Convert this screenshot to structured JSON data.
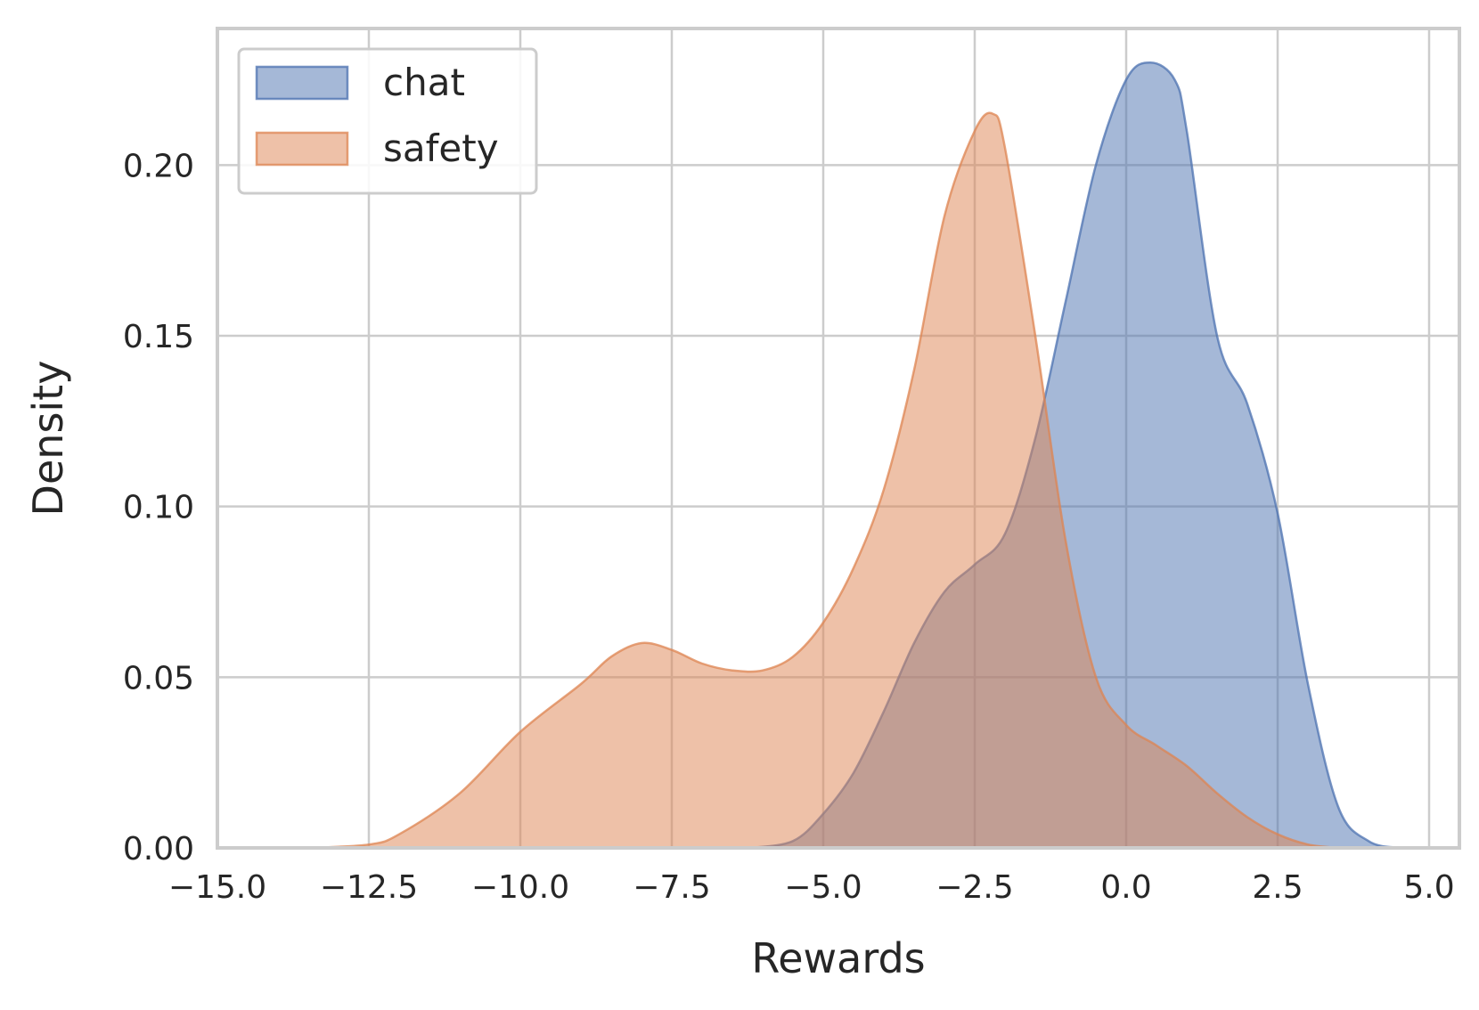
{
  "chart_data": {
    "type": "area",
    "title": "",
    "xlabel": "Rewards",
    "ylabel": "Density",
    "xlim": [
      -15.0,
      5.5
    ],
    "ylim": [
      0.0,
      0.24
    ],
    "x_ticks": [
      -15.0,
      -12.5,
      -10.0,
      -7.5,
      -5.0,
      -2.5,
      0.0,
      2.5,
      5.0
    ],
    "x_tick_labels": [
      "−15.0",
      "−12.5",
      "−10.0",
      "−7.5",
      "−5.0",
      "−2.5",
      "0.0",
      "2.5",
      "5.0"
    ],
    "y_ticks": [
      0.0,
      0.05,
      0.1,
      0.15,
      0.2
    ],
    "y_tick_labels": [
      "0.00",
      "0.05",
      "0.10",
      "0.15",
      "0.20"
    ],
    "grid": true,
    "legend_position": "top-left",
    "series": [
      {
        "name": "chat",
        "color": "#4c72b0",
        "x": [
          -6.2,
          -5.5,
          -5.0,
          -4.5,
          -4.0,
          -3.5,
          -3.0,
          -2.5,
          -2.0,
          -1.5,
          -1.0,
          -0.5,
          0.0,
          0.4,
          0.8,
          1.0,
          1.5,
          2.0,
          2.5,
          3.0,
          3.5,
          4.0,
          4.5
        ],
        "y": [
          0.0,
          0.002,
          0.01,
          0.022,
          0.04,
          0.06,
          0.075,
          0.083,
          0.092,
          0.12,
          0.16,
          0.2,
          0.225,
          0.23,
          0.225,
          0.21,
          0.15,
          0.13,
          0.098,
          0.048,
          0.012,
          0.002,
          0.0
        ]
      },
      {
        "name": "safety",
        "color": "#dd8452",
        "x": [
          -13.5,
          -12.5,
          -12.0,
          -11.0,
          -10.0,
          -9.0,
          -8.5,
          -8.0,
          -7.5,
          -7.0,
          -6.5,
          -6.0,
          -5.5,
          -5.0,
          -4.5,
          -4.0,
          -3.5,
          -3.0,
          -2.5,
          -2.2,
          -2.0,
          -1.5,
          -1.0,
          -0.5,
          0.0,
          0.5,
          1.0,
          1.5,
          2.0,
          2.5,
          3.0,
          3.5
        ],
        "y": [
          0.0,
          0.001,
          0.004,
          0.016,
          0.034,
          0.048,
          0.056,
          0.06,
          0.058,
          0.054,
          0.052,
          0.052,
          0.056,
          0.066,
          0.082,
          0.105,
          0.14,
          0.185,
          0.21,
          0.215,
          0.205,
          0.15,
          0.09,
          0.05,
          0.036,
          0.03,
          0.024,
          0.016,
          0.009,
          0.004,
          0.001,
          0.0
        ]
      }
    ]
  }
}
